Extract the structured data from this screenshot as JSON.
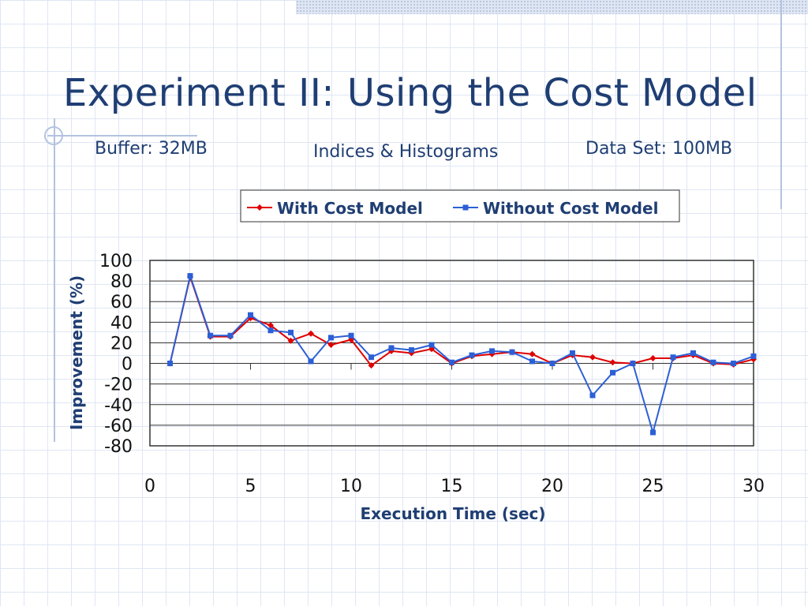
{
  "slide": {
    "title": "Experiment II: Using the Cost Model",
    "subtitles": {
      "buffer": "Buffer: 32MB",
      "indices": "Indices & Histograms",
      "dataset": "Data Set: 100MB"
    }
  },
  "colors": {
    "with_cost_model": "#e00000",
    "without_cost_model": "#2c5fd6",
    "text": "#1f3e73"
  },
  "chart_data": {
    "type": "line",
    "xlabel": "Execution Time (sec)",
    "ylabel": "Improvement (%)",
    "xlim": [
      0,
      30
    ],
    "ylim": [
      -80,
      100
    ],
    "xticks": [
      0,
      5,
      10,
      15,
      20,
      25,
      30
    ],
    "yticks": [
      100,
      80,
      60,
      40,
      20,
      0,
      -20,
      -40,
      -60,
      -80
    ],
    "grid": "horizontal",
    "legend_position": "top",
    "x": [
      1,
      2,
      3,
      4,
      5,
      6,
      7,
      8,
      9,
      10,
      11,
      12,
      13,
      14,
      15,
      16,
      17,
      18,
      19,
      20,
      21,
      22,
      23,
      24,
      25,
      26,
      27,
      28,
      29,
      30
    ],
    "series": [
      {
        "name": "With Cost Model",
        "marker": "diamond",
        "values": [
          0,
          84,
          26,
          26,
          44,
          37,
          22,
          29,
          18,
          23,
          -2,
          12,
          10,
          14,
          0,
          7,
          9,
          11,
          9,
          0,
          8,
          6,
          1,
          0,
          5,
          5,
          8,
          0,
          -1,
          4
        ]
      },
      {
        "name": "Without Cost Model",
        "marker": "square",
        "values": [
          0,
          85,
          27,
          27,
          47,
          32,
          30,
          2,
          25,
          27,
          6,
          15,
          13,
          18,
          1,
          8,
          12,
          11,
          2,
          0,
          10,
          -31,
          -9,
          0,
          -67,
          6,
          10,
          1,
          0,
          7
        ]
      }
    ]
  }
}
